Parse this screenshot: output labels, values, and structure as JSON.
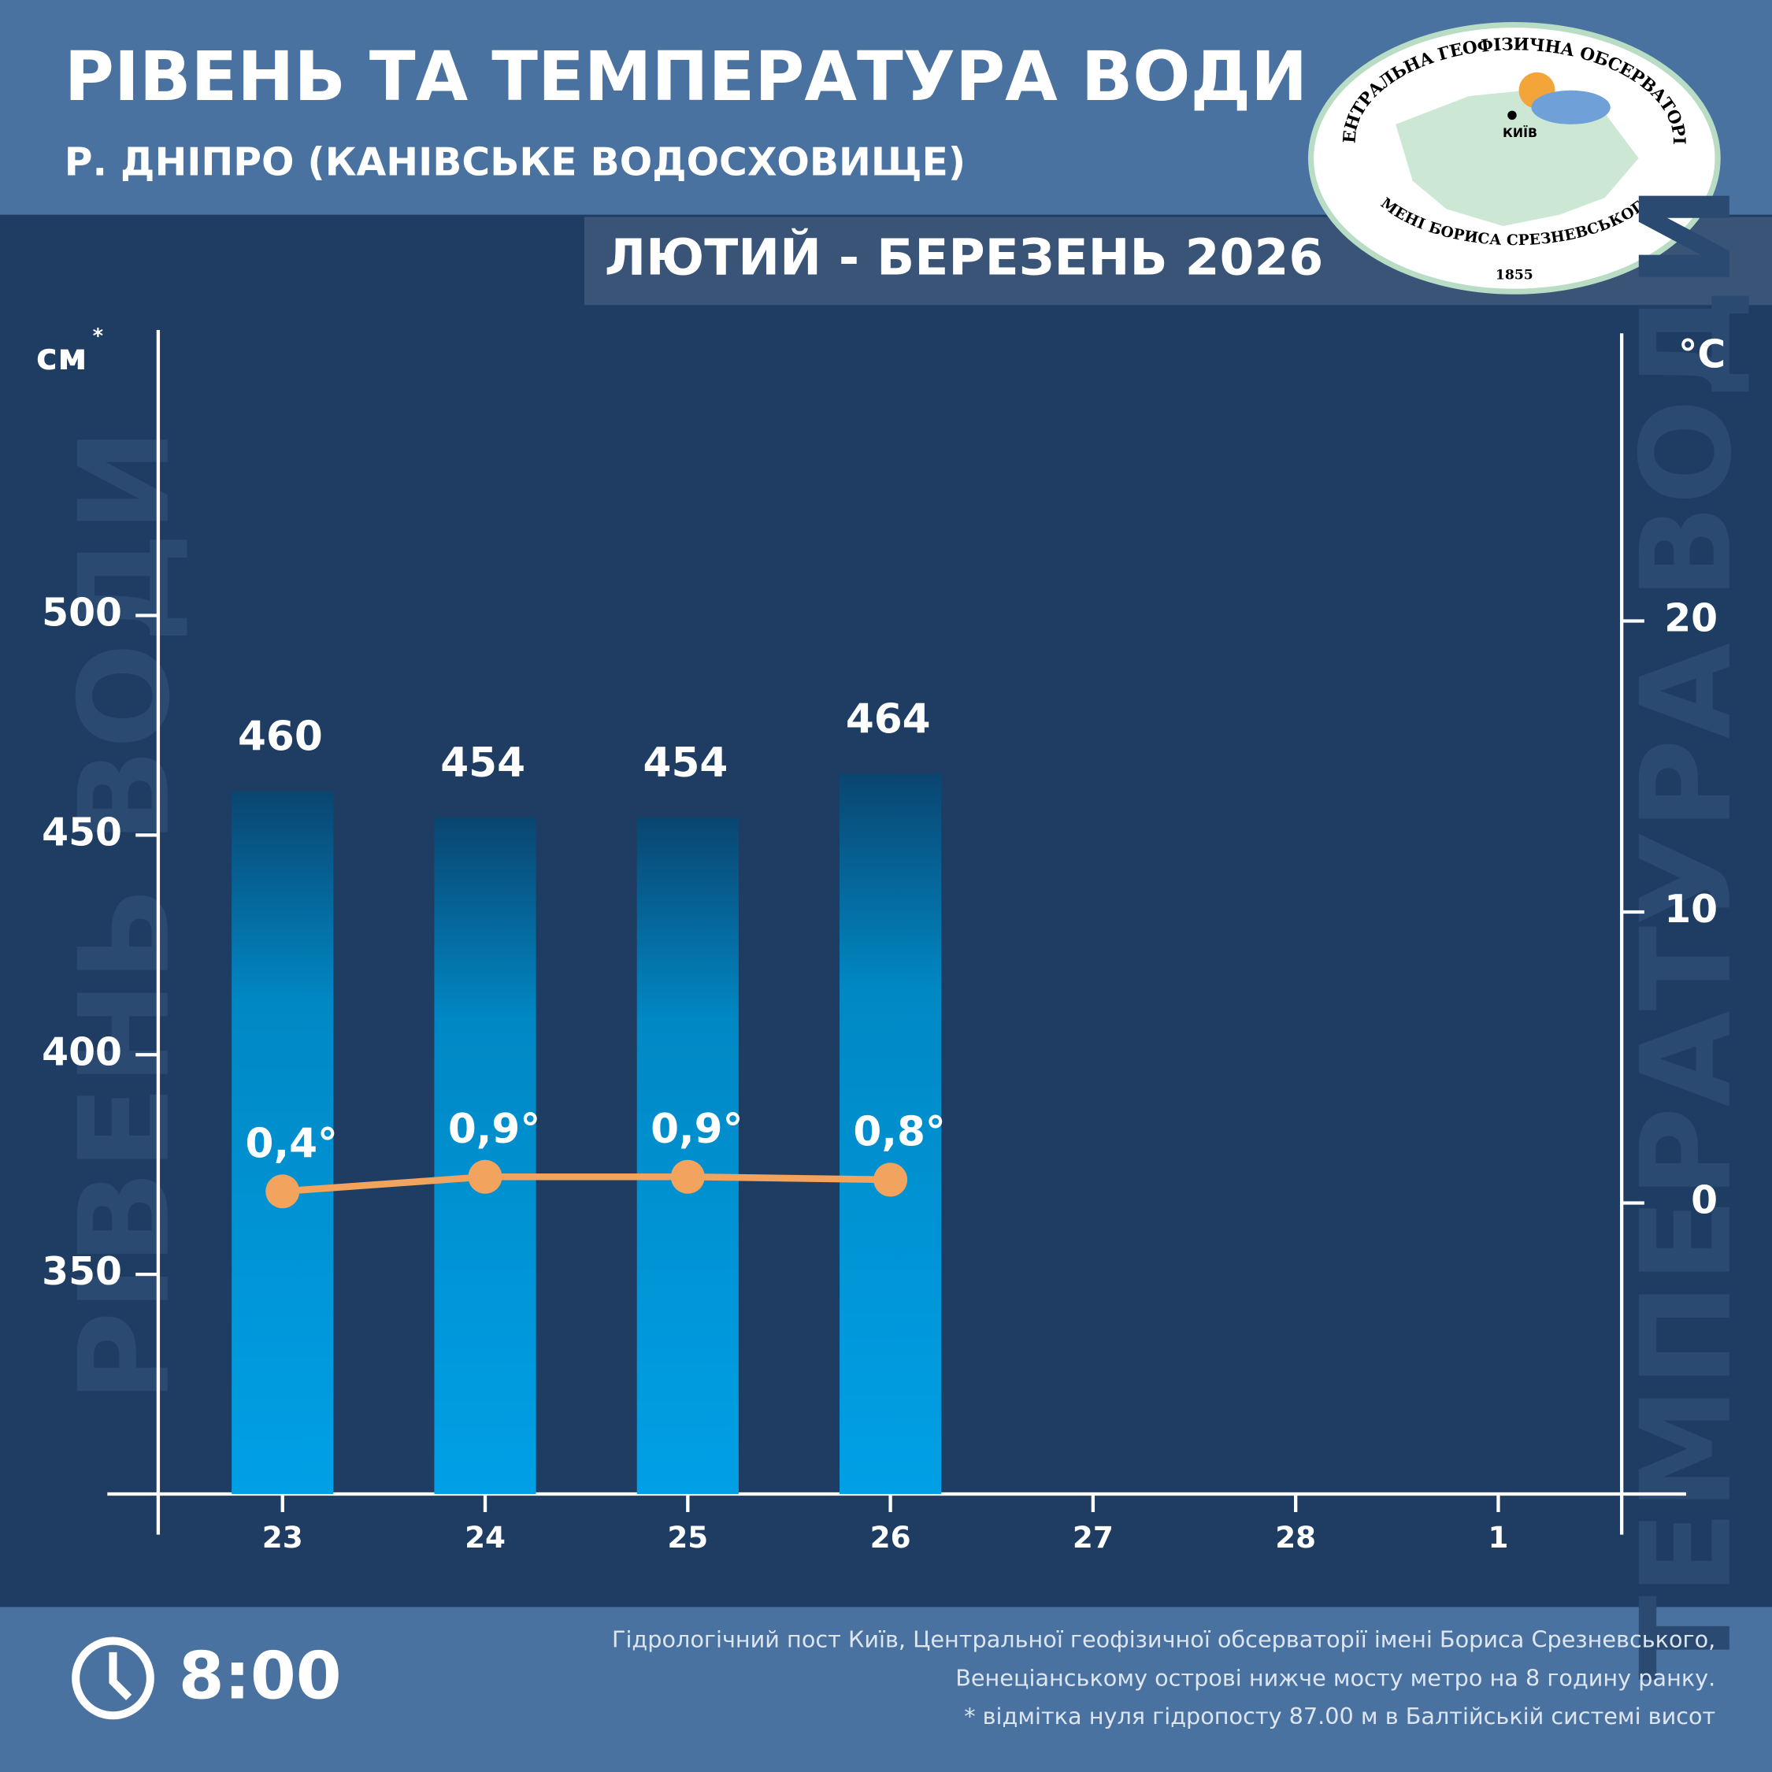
{
  "chart_data": {
    "type": "bar",
    "title": "РІВЕНЬ ТА ТЕМПЕРАТУРА ВОДИ",
    "subtitle": "Р. ДНІПРО (КАНІВСЬКЕ ВОДОСХОВИЩЕ)",
    "period": "ЛЮТИЙ - БЕРЕЗЕНЬ 2026",
    "y_label": "РІВЕНЬ ВОДИ",
    "y_unit": "см",
    "y_unit_mark": "*",
    "y2_label": "ТЕМПЕРАТУРА ВОДИ",
    "y2_unit": "°C",
    "categories": [
      "23",
      "24",
      "25",
      "26",
      "27",
      "28",
      "1"
    ],
    "series": [
      {
        "name": "Рівень води",
        "type": "bar",
        "color": "#00a0e6",
        "values": [
          460,
          454,
          454,
          464,
          null,
          null,
          null
        ]
      },
      {
        "name": "Температура води",
        "type": "line",
        "axis": "y2",
        "color": "#f2a35e",
        "values": [
          0.4,
          0.9,
          0.9,
          0.8,
          null,
          null,
          null
        ],
        "value_labels": [
          "0,4°",
          "0,9°",
          "0,9°",
          "0,8°",
          null,
          null,
          null
        ]
      }
    ],
    "ylim": [
      300,
      565
    ],
    "yticks": [
      350,
      400,
      450,
      500
    ],
    "y2lim": [
      -10,
      30
    ],
    "y2ticks": [
      0,
      10,
      20
    ],
    "time": "8:00",
    "notes": [
      "Гідрологічний пост Київ, Центральної геофізичної обсерваторії імені Бориса Срезневського,",
      "Венеціанському острові нижче мосту метро  на 8 годину ранку.",
      "* відмітка нуля гідропосту 87.00 м в Балтійській системі висот"
    ],
    "logo": {
      "top": "ЦЕНТРАЛЬНА ГЕОФІЗИЧНА ОБСЕРВАТОРІЯ",
      "bottom": "ІМЕНІ БОРИСА СРЕЗНЕВСЬКОГО",
      "year": "1855",
      "city": "КИЇВ"
    }
  }
}
